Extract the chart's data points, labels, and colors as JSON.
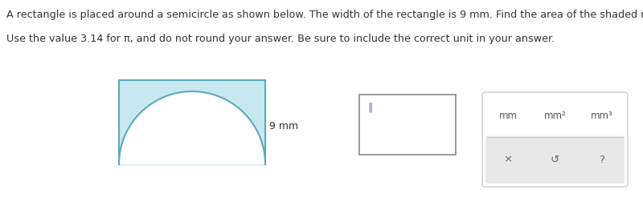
{
  "text_line1": "A rectangle is placed around a semicircle as shown below. The width of the rectangle is 9 mm. Find the area of the shaded region.",
  "text_line2": "Use the value 3.14 for π, and do not round your answer. Be sure to include the correct unit in your answer.",
  "label_9mm": "9 mm",
  "background_color": "#ffffff",
  "rect_fill": "#c8e8ef",
  "rect_edge": "#5aaabb",
  "semicircle_fill": "#ffffff",
  "semicircle_edge": "#5aaabb",
  "text_color": "#333333",
  "units": [
    "mm",
    "mm²",
    "mm³"
  ],
  "symbols": [
    "×",
    "↺",
    "?"
  ],
  "font_size_text": 9.2,
  "font_size_label": 9,
  "font_size_units": 8.5,
  "font_size_symbols": 9.5
}
